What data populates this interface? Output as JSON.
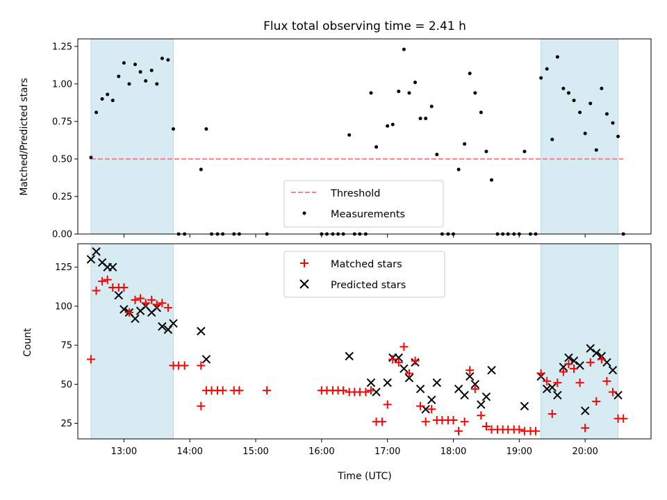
{
  "chart_data": [
    {
      "type": "scatter",
      "title": "Flux total observing time = 2.41 h",
      "xlabel": "",
      "ylabel": "Matched/Predicted stars",
      "xlim": [
        12.3,
        21.0
      ],
      "ylim": [
        0,
        1.3
      ],
      "yticks": [
        0.0,
        0.25,
        0.5,
        0.75,
        1.0,
        1.25
      ],
      "ytick_labels": [
        "0.00",
        "0.25",
        "0.50",
        "0.75",
        "1.00",
        "1.25"
      ],
      "xticks": [
        13,
        14,
        15,
        16,
        17,
        18,
        19,
        20
      ],
      "shaded_regions": [
        [
          12.5,
          13.75
        ],
        [
          19.33,
          20.5
        ]
      ],
      "shade_color": "#add8e6",
      "threshold": {
        "name": "Threshold",
        "value": 0.5,
        "x_range": [
          12.5,
          20.58
        ],
        "color": "#ff7f7f"
      },
      "series": [
        {
          "name": "Measurements",
          "color": "#000000",
          "points": [
            [
              12.5,
              0.51
            ],
            [
              12.58,
              0.81
            ],
            [
              12.67,
              0.9
            ],
            [
              12.75,
              0.93
            ],
            [
              12.83,
              0.89
            ],
            [
              12.92,
              1.05
            ],
            [
              13.0,
              1.14
            ],
            [
              13.08,
              1.0
            ],
            [
              13.17,
              1.13
            ],
            [
              13.25,
              1.08
            ],
            [
              13.33,
              1.02
            ],
            [
              13.42,
              1.09
            ],
            [
              13.5,
              1.0
            ],
            [
              13.58,
              1.17
            ],
            [
              13.67,
              1.16
            ],
            [
              13.75,
              0.7
            ],
            [
              13.83,
              0.0
            ],
            [
              13.92,
              0.0
            ],
            [
              14.17,
              0.43
            ],
            [
              14.25,
              0.7
            ],
            [
              14.33,
              0.0
            ],
            [
              14.42,
              0.0
            ],
            [
              14.5,
              0.0
            ],
            [
              14.67,
              0.0
            ],
            [
              14.75,
              0.0
            ],
            [
              15.17,
              0.0
            ],
            [
              16.0,
              0.0
            ],
            [
              16.08,
              0.0
            ],
            [
              16.17,
              0.0
            ],
            [
              16.25,
              0.0
            ],
            [
              16.33,
              0.0
            ],
            [
              16.42,
              0.66
            ],
            [
              16.5,
              0.0
            ],
            [
              16.58,
              0.0
            ],
            [
              16.67,
              0.0
            ],
            [
              16.75,
              0.94
            ],
            [
              16.83,
              0.58
            ],
            [
              17.0,
              0.72
            ],
            [
              17.08,
              0.73
            ],
            [
              17.17,
              0.95
            ],
            [
              17.25,
              1.23
            ],
            [
              17.33,
              0.94
            ],
            [
              17.42,
              1.01
            ],
            [
              17.5,
              0.77
            ],
            [
              17.58,
              0.77
            ],
            [
              17.67,
              0.85
            ],
            [
              17.75,
              0.53
            ],
            [
              17.83,
              0.0
            ],
            [
              17.92,
              0.0
            ],
            [
              18.0,
              0.0
            ],
            [
              18.08,
              0.43
            ],
            [
              18.17,
              0.6
            ],
            [
              18.25,
              1.07
            ],
            [
              18.33,
              0.94
            ],
            [
              18.42,
              0.81
            ],
            [
              18.5,
              0.55
            ],
            [
              18.58,
              0.36
            ],
            [
              18.67,
              0.0
            ],
            [
              18.75,
              0.0
            ],
            [
              18.83,
              0.0
            ],
            [
              18.92,
              0.0
            ],
            [
              19.0,
              0.0
            ],
            [
              19.08,
              0.55
            ],
            [
              19.17,
              0.0
            ],
            [
              19.25,
              0.0
            ],
            [
              19.33,
              1.04
            ],
            [
              19.42,
              1.1
            ],
            [
              19.5,
              0.63
            ],
            [
              19.58,
              1.18
            ],
            [
              19.67,
              0.97
            ],
            [
              19.75,
              0.94
            ],
            [
              19.83,
              0.89
            ],
            [
              19.92,
              0.81
            ],
            [
              20.0,
              0.67
            ],
            [
              20.08,
              0.87
            ],
            [
              20.17,
              0.56
            ],
            [
              20.25,
              0.97
            ],
            [
              20.33,
              0.8
            ],
            [
              20.42,
              0.74
            ],
            [
              20.5,
              0.65
            ],
            [
              20.58,
              0.0
            ]
          ]
        }
      ],
      "legend": {
        "position": "lower-center",
        "entries": [
          "Threshold",
          "Measurements"
        ]
      }
    },
    {
      "type": "scatter",
      "title": "",
      "xlabel": "Time (UTC)",
      "ylabel": "Count",
      "xlim": [
        12.3,
        21.0
      ],
      "ylim": [
        15,
        140
      ],
      "yticks": [
        25,
        50,
        75,
        100,
        125
      ],
      "ytick_labels": [
        "25",
        "50",
        "75",
        "100",
        "125"
      ],
      "xticks": [
        13,
        14,
        15,
        16,
        17,
        18,
        19,
        20
      ],
      "xtick_labels": [
        "13:00",
        "14:00",
        "15:00",
        "16:00",
        "17:00",
        "18:00",
        "19:00",
        "20:00"
      ],
      "shaded_regions": [
        [
          12.5,
          13.75
        ],
        [
          19.33,
          20.5
        ]
      ],
      "shade_color": "#add8e6",
      "series": [
        {
          "name": "Matched stars",
          "marker": "+",
          "color": "#ff0000",
          "points": [
            [
              12.5,
              66
            ],
            [
              12.58,
              110
            ],
            [
              12.67,
              116
            ],
            [
              12.75,
              117
            ],
            [
              12.83,
              112
            ],
            [
              12.92,
              112
            ],
            [
              13.0,
              112
            ],
            [
              13.08,
              96
            ],
            [
              13.17,
              104
            ],
            [
              13.25,
              105
            ],
            [
              13.33,
              102
            ],
            [
              13.42,
              104
            ],
            [
              13.5,
              101
            ],
            [
              13.58,
              102
            ],
            [
              13.67,
              99
            ],
            [
              13.75,
              62
            ],
            [
              13.83,
              62
            ],
            [
              13.92,
              62
            ],
            [
              14.17,
              36
            ],
            [
              14.17,
              62
            ],
            [
              14.25,
              46
            ],
            [
              14.33,
              46
            ],
            [
              14.42,
              46
            ],
            [
              14.5,
              46
            ],
            [
              14.67,
              46
            ],
            [
              14.75,
              46
            ],
            [
              15.17,
              46
            ],
            [
              16.0,
              46
            ],
            [
              16.08,
              46
            ],
            [
              16.17,
              46
            ],
            [
              16.25,
              46
            ],
            [
              16.33,
              46
            ],
            [
              16.42,
              45
            ],
            [
              16.5,
              45
            ],
            [
              16.58,
              45
            ],
            [
              16.67,
              45
            ],
            [
              16.75,
              46
            ],
            [
              16.83,
              26
            ],
            [
              16.92,
              26
            ],
            [
              17.0,
              37
            ],
            [
              17.08,
              66
            ],
            [
              17.17,
              64
            ],
            [
              17.25,
              74
            ],
            [
              17.33,
              57
            ],
            [
              17.42,
              65
            ],
            [
              17.5,
              36
            ],
            [
              17.58,
              26
            ],
            [
              17.67,
              34
            ],
            [
              17.75,
              27
            ],
            [
              17.83,
              27
            ],
            [
              17.92,
              27
            ],
            [
              18.0,
              27
            ],
            [
              18.08,
              20
            ],
            [
              18.17,
              26
            ],
            [
              18.25,
              59
            ],
            [
              18.33,
              47
            ],
            [
              18.42,
              30
            ],
            [
              18.5,
              23
            ],
            [
              18.58,
              21
            ],
            [
              18.67,
              21
            ],
            [
              18.75,
              21
            ],
            [
              18.83,
              21
            ],
            [
              18.92,
              21
            ],
            [
              19.0,
              21
            ],
            [
              19.08,
              20
            ],
            [
              19.17,
              20
            ],
            [
              19.25,
              20
            ],
            [
              19.33,
              57
            ],
            [
              19.42,
              52
            ],
            [
              19.5,
              31
            ],
            [
              19.58,
              51
            ],
            [
              19.67,
              58
            ],
            [
              19.75,
              63
            ],
            [
              19.83,
              60
            ],
            [
              19.92,
              51
            ],
            [
              20.0,
              22
            ],
            [
              20.08,
              64
            ],
            [
              20.17,
              39
            ],
            [
              20.25,
              66
            ],
            [
              20.33,
              52
            ],
            [
              20.42,
              45
            ],
            [
              20.5,
              28
            ],
            [
              20.58,
              28
            ]
          ]
        },
        {
          "name": "Predicted stars",
          "marker": "x",
          "color": "#000000",
          "points": [
            [
              12.5,
              130
            ],
            [
              12.58,
              135
            ],
            [
              12.67,
              128
            ],
            [
              12.75,
              125
            ],
            [
              12.83,
              125
            ],
            [
              12.92,
              107
            ],
            [
              13.0,
              98
            ],
            [
              13.08,
              96
            ],
            [
              13.17,
              92
            ],
            [
              13.25,
              97
            ],
            [
              13.33,
              100
            ],
            [
              13.42,
              96
            ],
            [
              13.5,
              99
            ],
            [
              13.58,
              87
            ],
            [
              13.67,
              85
            ],
            [
              13.75,
              89
            ],
            [
              14.17,
              84
            ],
            [
              14.25,
              66
            ],
            [
              16.42,
              68
            ],
            [
              16.75,
              51
            ],
            [
              16.83,
              45
            ],
            [
              17.0,
              51
            ],
            [
              17.08,
              67
            ],
            [
              17.17,
              67
            ],
            [
              17.25,
              60
            ],
            [
              17.33,
              54
            ],
            [
              17.42,
              64
            ],
            [
              17.5,
              47
            ],
            [
              17.58,
              34
            ],
            [
              17.67,
              40
            ],
            [
              17.75,
              51
            ],
            [
              18.08,
              47
            ],
            [
              18.17,
              43
            ],
            [
              18.25,
              55
            ],
            [
              18.33,
              50
            ],
            [
              18.42,
              37
            ],
            [
              18.5,
              42
            ],
            [
              18.58,
              59
            ],
            [
              19.08,
              36
            ],
            [
              19.33,
              55
            ],
            [
              19.42,
              47
            ],
            [
              19.5,
              48
            ],
            [
              19.58,
              43
            ],
            [
              19.67,
              61
            ],
            [
              19.75,
              67
            ],
            [
              19.83,
              65
            ],
            [
              19.92,
              62
            ],
            [
              20.0,
              33
            ],
            [
              20.08,
              73
            ],
            [
              20.17,
              70
            ],
            [
              20.25,
              68
            ],
            [
              20.33,
              64
            ],
            [
              20.42,
              59
            ],
            [
              20.5,
              43
            ]
          ]
        }
      ],
      "legend": {
        "position": "upper-center",
        "entries": [
          "Matched stars",
          "Predicted stars"
        ]
      }
    }
  ]
}
